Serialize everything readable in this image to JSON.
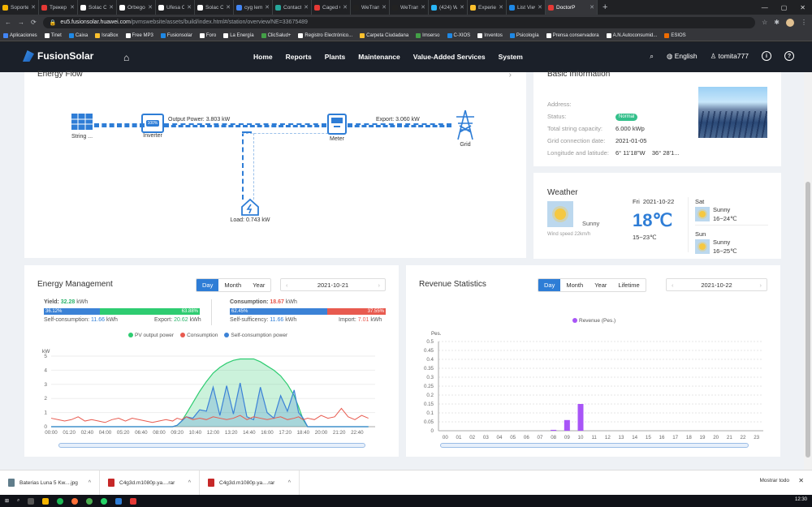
{
  "browser": {
    "tabs": [
      {
        "title": "Soporte",
        "color": "#f4b400"
      },
      {
        "title": "Трекер",
        "color": "#e53935"
      },
      {
        "title": "Solac C",
        "color": "#ffffff"
      },
      {
        "title": "Orbego",
        "color": "#ffffff"
      },
      {
        "title": "Ufesa C",
        "color": "#ffffff"
      },
      {
        "title": "Solac C",
        "color": "#ffffff"
      },
      {
        "title": "cyg lem",
        "color": "#4285f4"
      },
      {
        "title": "Contact",
        "color": "#26a69a"
      },
      {
        "title": "Caged C",
        "color": "#e53935"
      },
      {
        "title": "WeTran",
        "color": "#222222"
      },
      {
        "title": "WeTran",
        "color": "#222222"
      },
      {
        "title": "(424) W",
        "color": "#29b6f6"
      },
      {
        "title": "Experie",
        "color": "#fbc02d"
      },
      {
        "title": "List View",
        "color": "#1e88e5"
      },
      {
        "title": "DoctorP",
        "color": "#e53935",
        "active": true
      }
    ],
    "url_host": "eu5.fusionsolar.huawei.com",
    "url_path": "/pvmswebsite/assets/build/index.html#/station/overview/NE=33675489",
    "bookmarks": [
      {
        "label": "Aplicaciones",
        "color": "#4285f4"
      },
      {
        "label": "Tinet",
        "color": "#ffffff"
      },
      {
        "label": "Caixa",
        "color": "#1e88e5"
      },
      {
        "label": "IsraBox",
        "color": "#fbc02d"
      },
      {
        "label": "Free MP3",
        "color": "#ffffff"
      },
      {
        "label": "Fusionsolar",
        "color": "#1e88e5"
      },
      {
        "label": "Foro",
        "color": "#ffffff"
      },
      {
        "label": "La Energía",
        "color": "#ffffff"
      },
      {
        "label": "ClicSalud+",
        "color": "#43a047"
      },
      {
        "label": "Registro Electrónico...",
        "color": "#ffffff"
      },
      {
        "label": "Carpeta Ciudadana",
        "color": "#fbc02d"
      },
      {
        "label": "Imserso",
        "color": "#43a047"
      },
      {
        "label": "C-XIOS",
        "color": "#1e88e5"
      },
      {
        "label": "Inventos",
        "color": "#ffffff"
      },
      {
        "label": "Psicología",
        "color": "#1e88e5"
      },
      {
        "label": "Prensa conservadora",
        "color": "#ffffff"
      },
      {
        "label": "A.N.Autoconsumid...",
        "color": "#ffffff"
      },
      {
        "label": "ESIOS",
        "color": "#ef6c00"
      }
    ]
  },
  "app": {
    "brand": "FusionSolar",
    "nav": [
      "Home",
      "Reports",
      "Plants",
      "Maintenance",
      "Value-Added Services",
      "System"
    ],
    "language": "English",
    "user": "tomita777"
  },
  "energy_flow": {
    "title": "Energy Flow",
    "string_label": "String ...",
    "inverter_label": "Inverter",
    "inverter_badge": "100%",
    "meter_label": "Meter",
    "grid_label": "Grid",
    "output_power": "Output Power: 3.803 kW",
    "export": "Export: 3.060 kW",
    "load": "Load: 0.743 kW"
  },
  "basic_info": {
    "title": "Basic Information",
    "rows": [
      {
        "label": "Address:",
        "value": ""
      },
      {
        "label": "Status:",
        "value": "Normal"
      },
      {
        "label": "Total string capacity:",
        "value": "6.000 kWp"
      },
      {
        "label": "Grid connection date:",
        "value": "2021-01-05"
      },
      {
        "label": "Longitude and latitude:",
        "value": "6° 11'18\"W    36° 28'1..."
      }
    ]
  },
  "weather": {
    "title": "Weather",
    "today_condition": "Sunny",
    "wind": "Wind speed 22km/h",
    "date": "Fri  2021-10-22",
    "temp": "18℃",
    "range": "15~23℃",
    "forecast": [
      {
        "day": "Sat",
        "condition": "Sunny",
        "range": "16~24℃"
      },
      {
        "day": "Sun",
        "condition": "Sunny",
        "range": "16~25℃"
      }
    ]
  },
  "energy_management": {
    "title": "Energy Management",
    "periods": [
      "Day",
      "Month",
      "Year"
    ],
    "active_period": "Day",
    "date": "2021-10-21",
    "yield_label": "Yield:",
    "yield_value": "32.28",
    "unit": "kWh",
    "yield_split": [
      "36.12%",
      "63.88%"
    ],
    "yield_fraction_self": 0.3612,
    "self_consumption_label": "Self-consumption:",
    "self_consumption_value": "11.66",
    "export_label": "Export:",
    "export_value": "20.62",
    "consumption_label": "Consumption:",
    "consumption_value": "18.67",
    "consumption_split": [
      "62.45%",
      "37.55%"
    ],
    "consumption_fraction_self": 0.6245,
    "self_sufficiency_label": "Self-sufficency:",
    "self_sufficiency_value": "11.66",
    "import_label": "Import:",
    "import_value": "7.01",
    "colors": {
      "pv": "#2ecc71",
      "consumption": "#e85a4f",
      "self": "#3b82d6"
    }
  },
  "revenue": {
    "title": "Revenue Statistics",
    "periods": [
      "Day",
      "Month",
      "Year",
      "Lifetime"
    ],
    "active_period": "Day",
    "date": "2021-10-22",
    "color": "#a855f7"
  },
  "chart_data": [
    {
      "type": "area",
      "ylabel": "kW",
      "ylim": [
        0,
        5
      ],
      "yticks": [
        0,
        1,
        2,
        3,
        4,
        5
      ],
      "x_ticks": [
        "00:00",
        "01:20",
        "02:40",
        "04:00",
        "05:20",
        "06:40",
        "08:00",
        "09:20",
        "10:40",
        "12:00",
        "13:20",
        "14:40",
        "16:00",
        "17:20",
        "18:40",
        "20:00",
        "21:20",
        "22:40"
      ],
      "x_hours": [
        0,
        0.5,
        1,
        1.5,
        2,
        2.5,
        3,
        3.5,
        4,
        4.5,
        5,
        5.5,
        6,
        6.5,
        7,
        7.5,
        8,
        8.5,
        9,
        9.33,
        9.67,
        10,
        10.5,
        11,
        11.5,
        12,
        12.5,
        13,
        13.5,
        14,
        14.5,
        15,
        15.5,
        16,
        16.5,
        17,
        17.5,
        18,
        18.33,
        18.67,
        19,
        19.5,
        20,
        20.5,
        21,
        21.5,
        22,
        22.5,
        23,
        23.5
      ],
      "series": [
        {
          "name": "PV output power",
          "values": [
            0,
            0,
            0,
            0,
            0,
            0,
            0,
            0,
            0,
            0,
            0,
            0,
            0,
            0,
            0,
            0,
            0,
            0,
            0,
            0.1,
            0.4,
            0.9,
            1.7,
            2.5,
            3.2,
            3.8,
            4.2,
            4.5,
            4.7,
            4.8,
            4.8,
            4.8,
            4.6,
            4.3,
            4.0,
            3.6,
            3.0,
            2.2,
            1.4,
            0.5,
            0,
            0,
            0,
            0,
            0,
            0,
            0,
            0,
            0,
            0
          ]
        },
        {
          "name": "Consumption",
          "values": [
            0.6,
            0.5,
            0.4,
            0.5,
            0.7,
            0.4,
            0.5,
            0.4,
            0.3,
            0.5,
            0.6,
            0.4,
            0.6,
            0.5,
            0.4,
            0.3,
            0.4,
            0.5,
            0.4,
            0.6,
            0.5,
            0.7,
            0.5,
            0.6,
            0.5,
            0.7,
            0.6,
            0.5,
            0.6,
            0.8,
            0.5,
            0.7,
            0.6,
            0.5,
            0.6,
            0.7,
            0.5,
            0.6,
            0.7,
            0.5,
            0.6,
            0.5,
            0.8,
            0.6,
            0.7,
            1.3,
            0.7,
            0.5,
            0.8,
            0.6
          ]
        },
        {
          "name": "Self-consumption power",
          "values": [
            0,
            0,
            0,
            0,
            0,
            0,
            0,
            0,
            0,
            0,
            0,
            0,
            0,
            0,
            0,
            0,
            0,
            0,
            0,
            0.1,
            0.4,
            0.7,
            0.6,
            1.2,
            1.1,
            2.8,
            0.8,
            2.9,
            0.9,
            3.1,
            0.7,
            0.5,
            2.8,
            1.0,
            0.6,
            2.2,
            1.1,
            2.6,
            1.0,
            0.6,
            0,
            0,
            0,
            0,
            0,
            0,
            0,
            0,
            0,
            0
          ]
        }
      ]
    },
    {
      "type": "bar",
      "ylabel": "Pes.",
      "ylim": [
        0,
        0.5
      ],
      "yticks": [
        0,
        0.05,
        0.1,
        0.15,
        0.2,
        0.25,
        0.3,
        0.35,
        0.4,
        0.45,
        0.5
      ],
      "categories": [
        "00",
        "01",
        "02",
        "03",
        "04",
        "05",
        "06",
        "07",
        "08",
        "09",
        "10",
        "11",
        "12",
        "13",
        "14",
        "15",
        "16",
        "17",
        "18",
        "19",
        "20",
        "21",
        "22",
        "23"
      ],
      "series": [
        {
          "name": "Revenue (Pes.)",
          "values": [
            0,
            0,
            0,
            0,
            0,
            0,
            0,
            0,
            0.005,
            0.06,
            0.15,
            0,
            0,
            0,
            0,
            0,
            0,
            0,
            0,
            0,
            0,
            0,
            0,
            0
          ]
        }
      ]
    }
  ],
  "downloads": [
    {
      "name": "Baterias Luna 5 Kw....jpg"
    },
    {
      "name": "C4g3d.m1080p.ya....rar"
    },
    {
      "name": "C4g3d.m1080p.ya....rar"
    }
  ],
  "downloads_show_all": "Mostrar todo",
  "clock": "12:30"
}
